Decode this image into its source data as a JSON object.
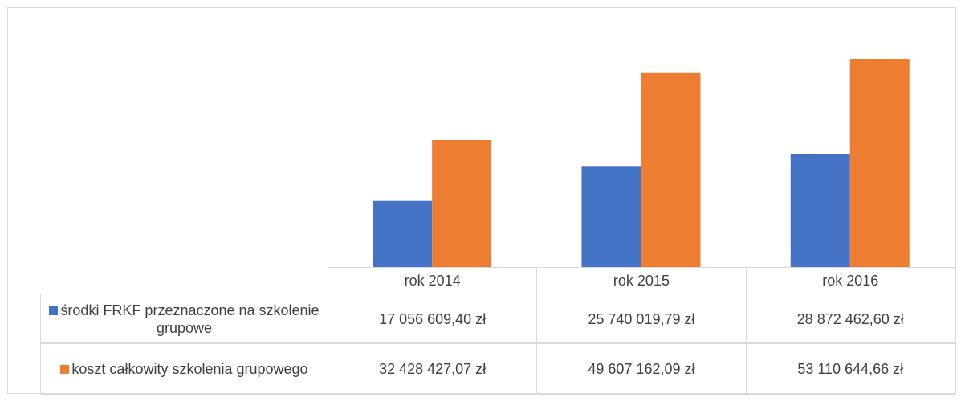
{
  "chart_data": {
    "type": "bar",
    "categories": [
      "rok 2014",
      "rok 2015",
      "rok 2016"
    ],
    "series": [
      {
        "name": "środki FRKF przeznaczone na szkolenie grupowe",
        "color": "#4472c4",
        "values": [
          17056609.4,
          25740019.79,
          28872462.6
        ],
        "value_labels": [
          "17 056 609,40 zł",
          "25 740 019,79 zł",
          "28 872 462,60 zł"
        ]
      },
      {
        "name": "koszt całkowity szkolenia grupowego",
        "color": "#ed7d31",
        "values": [
          32428427.07,
          49607162.09,
          53110644.66
        ],
        "value_labels": [
          "32 428 427,07 zł",
          "49 607 162,09 zł",
          "53 110 644,66 zł"
        ]
      }
    ],
    "ylim": [
      0,
      60000000
    ]
  }
}
